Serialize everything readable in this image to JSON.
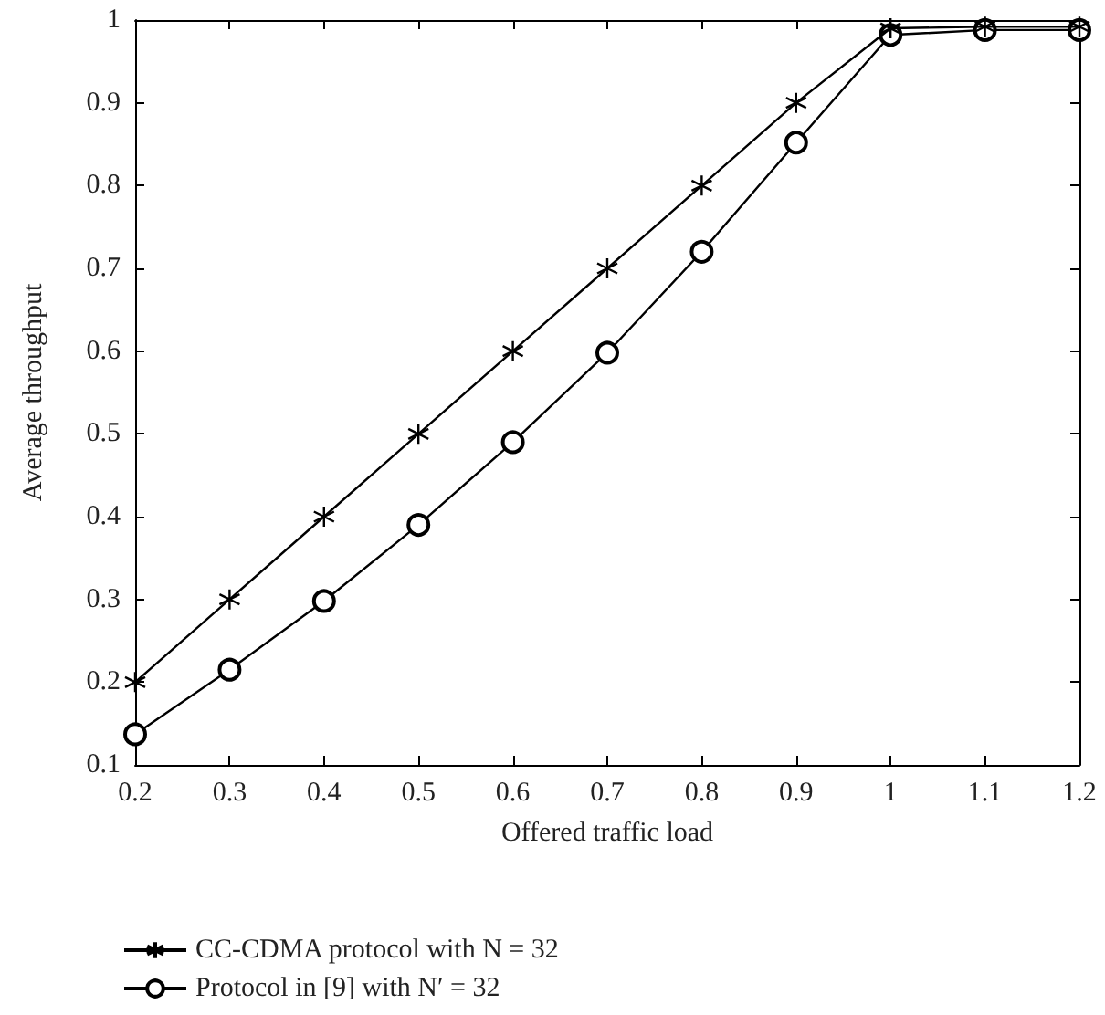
{
  "chart_data": {
    "type": "line",
    "xlabel": "Offered traffic load",
    "ylabel": "Average throughput",
    "x": [
      0.2,
      0.3,
      0.4,
      0.5,
      0.6,
      0.7,
      0.8,
      0.9,
      1.0,
      1.1,
      1.2
    ],
    "series": [
      {
        "name": "CC-CDMA protocol with N = 32",
        "color": "#000000",
        "marker": "cross",
        "values": [
          0.2,
          0.3,
          0.4,
          0.5,
          0.6,
          0.7,
          0.8,
          0.9,
          0.99,
          0.992,
          0.992
        ]
      },
      {
        "name": "Protocol in [9] with N′ = 32",
        "color": "#000000",
        "marker": "circle",
        "values": [
          0.137,
          0.215,
          0.298,
          0.39,
          0.49,
          0.598,
          0.72,
          0.852,
          0.982,
          0.988,
          0.988
        ]
      }
    ],
    "xlim": [
      0.2,
      1.2
    ],
    "xticks": [
      0.2,
      0.3,
      0.4,
      0.5,
      0.6,
      0.7,
      0.8,
      0.9,
      1,
      1.1,
      1.2
    ],
    "ylim": [
      0.1,
      1
    ],
    "yticks": [
      0.1,
      0.2,
      0.3,
      0.4,
      0.5,
      0.6,
      0.7,
      0.8,
      0.9,
      1
    ],
    "grid": false,
    "legend": "bottom left",
    "line_style": "solid"
  }
}
